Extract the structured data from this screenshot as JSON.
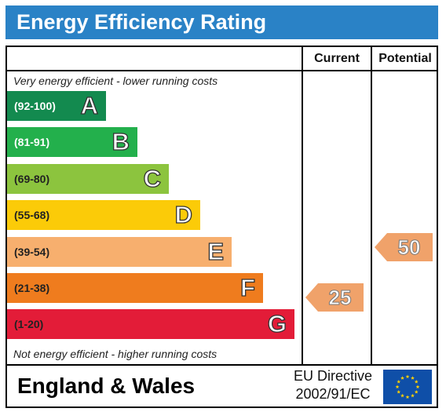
{
  "header": {
    "title": "Energy Efficiency Rating"
  },
  "columns": {
    "current": "Current",
    "potential": "Potential"
  },
  "notes": {
    "top": "Very energy efficient - lower running costs",
    "bottom": "Not energy efficient - higher running costs"
  },
  "chart_data": {
    "type": "bar",
    "bands": [
      {
        "range": "(92-100)",
        "letter": "A",
        "color": "#138a4f",
        "range_color": "#ffffff"
      },
      {
        "range": "(81-91)",
        "letter": "B",
        "color": "#23b04c",
        "range_color": "#ffffff"
      },
      {
        "range": "(69-80)",
        "letter": "C",
        "color": "#8cc43e",
        "range_color": "#222222"
      },
      {
        "range": "(55-68)",
        "letter": "D",
        "color": "#fbcb08",
        "range_color": "#222222"
      },
      {
        "range": "(39-54)",
        "letter": "E",
        "color": "#f7af6e",
        "range_color": "#222222"
      },
      {
        "range": "(21-38)",
        "letter": "F",
        "color": "#ef7c1e",
        "range_color": "#222222"
      },
      {
        "range": "(1-20)",
        "letter": "G",
        "color": "#e31c38",
        "range_color": "#222222"
      }
    ],
    "current": {
      "value": 25,
      "band": "F"
    },
    "potential": {
      "value": 50,
      "band": "E"
    }
  },
  "footer": {
    "country": "England & Wales",
    "directive_line1": "EU Directive",
    "directive_line2": "2002/91/EC"
  },
  "icons": {
    "flag": "eu-flag-icon"
  },
  "colors": {
    "title_bar": "#2a82c6",
    "pointer": "#f0a26a",
    "flag_blue": "#0f4fa8",
    "flag_star": "#ffd200"
  }
}
